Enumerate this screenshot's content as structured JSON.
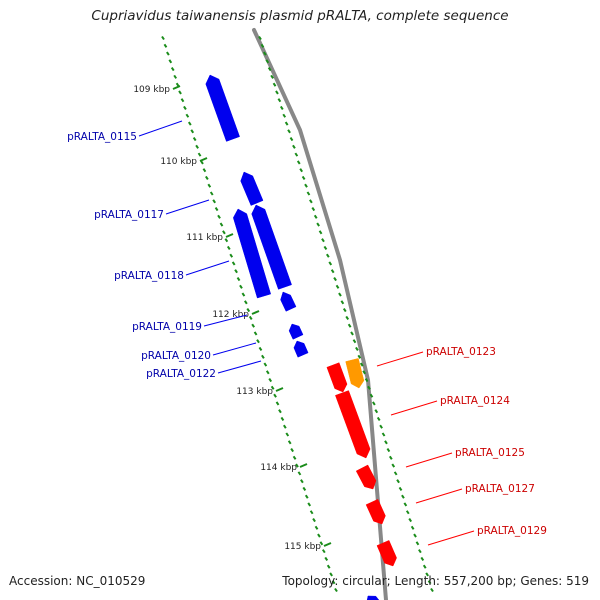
{
  "title": "Cupriavidus taiwanensis plasmid pRALTA, complete sequence",
  "footer": {
    "accession": "Accession: NC_010529",
    "summary": "Topology: circular; Length: 557,200 bp; Genes: 519"
  },
  "colors": {
    "backbone": "#888888",
    "tick": "#1a8c1a",
    "reverse_gene": "#0000ee",
    "forward_gene": "#ff0000",
    "highlight_gene": "#ff9900",
    "reverse_label": "#0000aa",
    "forward_label": "#cc0000",
    "kbp_label": "#222222"
  },
  "kbp_labels": [
    "109 kbp",
    "110 kbp",
    "111 kbp",
    "112 kbp",
    "113 kbp",
    "114 kbp",
    "115 kbp"
  ],
  "reverse_genes": [
    {
      "label": "pRALTA_0115"
    },
    {
      "label": "pRALTA_0117"
    },
    {
      "label": "pRALTA_0118"
    },
    {
      "label": "pRALTA_0119"
    },
    {
      "label": "pRALTA_0120"
    },
    {
      "label": "pRALTA_0122"
    }
  ],
  "forward_genes": [
    {
      "label": "pRALTA_0123"
    },
    {
      "label": "pRALTA_0124"
    },
    {
      "label": "pRALTA_0125"
    },
    {
      "label": "pRALTA_0127"
    },
    {
      "label": "pRALTA_0129"
    }
  ]
}
